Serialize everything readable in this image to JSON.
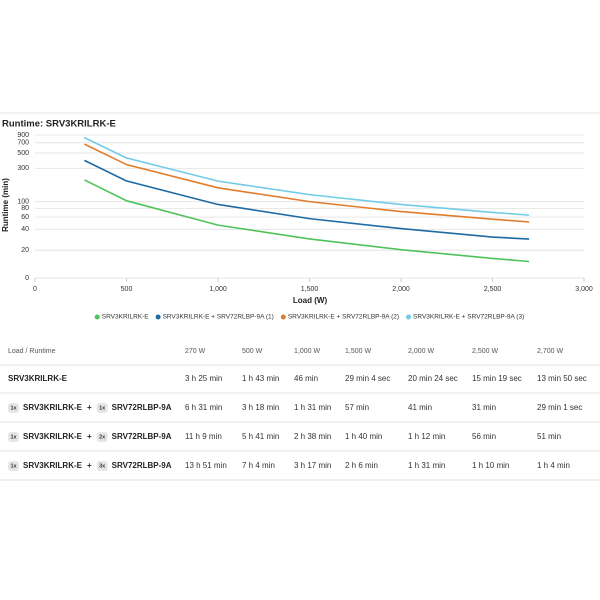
{
  "chart_data": {
    "type": "line",
    "title": "Runtime: SRV3KRILRK-E",
    "x_label": "Load (W)",
    "y_label": "Runtime (min)",
    "log_scale": true,
    "grid": true,
    "legend": "bottom",
    "xlim": [
      0,
      3000
    ],
    "xticks": [
      0,
      500,
      {
        "value": 1000,
        "label": "1,000"
      },
      {
        "value": 1500,
        "label": "1,500"
      },
      {
        "value": 2000,
        "label": "2,000"
      },
      {
        "value": 2500,
        "label": "2,500"
      },
      {
        "value": 3000,
        "label": "3,000"
      }
    ],
    "ylim": [
      8,
      1000
    ],
    "yticks": [
      0,
      20,
      40,
      60,
      80,
      100,
      300,
      500,
      700,
      900
    ],
    "x": [
      270,
      500,
      1000,
      1500,
      2000,
      2500,
      2700
    ],
    "series": [
      {
        "name": "SRV3KRILRK-E",
        "color": "#4fc35a",
        "values": [
          205,
          103,
          46,
          29.1,
          20.4,
          15.3,
          13.8
        ]
      },
      {
        "name": "SRV3KRILRK-E + SRV72RLBP-9A (1)",
        "color": "#1d6aa5",
        "values": [
          391,
          198,
          91,
          57,
          41,
          31,
          29
        ]
      },
      {
        "name": "SRV3KRILRK-E + SRV72RLBP-9A (2)",
        "color": "#e07c2e",
        "values": [
          669,
          341,
          158,
          100,
          72,
          56,
          51
        ]
      },
      {
        "name": "SRV3KRILRK-E + SRV72RLBP-9A (3)",
        "color": "#72cbe6",
        "values": [
          831,
          424,
          197,
          126,
          91,
          70,
          64
        ]
      }
    ]
  },
  "table": {
    "header": [
      "Load / Runtime",
      "270 W",
      "500 W",
      "1,000 W",
      "1,500 W",
      "2,000 W",
      "2,500 W",
      "2,700 W"
    ],
    "rows": [
      {
        "ups": "SRV3KRILRK-E",
        "runtimes": [
          "3 h 25 min",
          "1 h 43 min",
          "46 min",
          "29 min 4 sec",
          "20 min 24 sec",
          "15 min 19 sec",
          "13 min 50 sec"
        ]
      },
      {
        "ups_qty": "1x",
        "ups": "SRV3KRILRK-E",
        "plus": "+",
        "battery_qty": "1x",
        "battery": "SRV72RLBP-9A",
        "runtimes": [
          "6 h 31 min",
          "3 h 18 min",
          "1 h 31 min",
          "57 min",
          "41 min",
          "31 min",
          "29 min 1 sec"
        ]
      },
      {
        "ups_qty": "1x",
        "ups": "SRV3KRILRK-E",
        "plus": "+",
        "battery_qty": "2x",
        "battery": "SRV72RLBP-9A",
        "runtimes": [
          "11 h 9 min",
          "5 h 41 min",
          "2 h 38 min",
          "1 h 40 min",
          "1 h 12 min",
          "56 min",
          "51 min"
        ]
      },
      {
        "ups_qty": "1x",
        "ups": "SRV3KRILRK-E",
        "plus": "+",
        "battery_qty": "3x",
        "battery": "SRV72RLBP-9A",
        "runtimes": [
          "13 h 51 min",
          "7 h 4 min",
          "3 h 17 min",
          "2 h 6 min",
          "1 h 31 min",
          "1 h 10 min",
          "1 h 4 min"
        ]
      }
    ]
  }
}
